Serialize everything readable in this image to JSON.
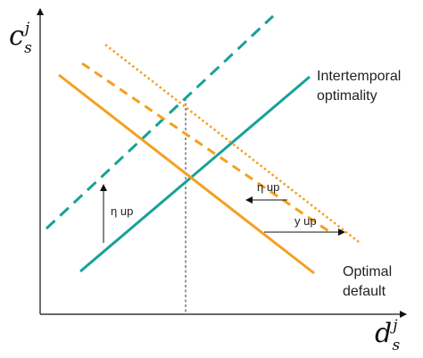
{
  "axes": {
    "y_label": {
      "base": "c",
      "sup": "j",
      "sub": "s"
    },
    "x_label": {
      "base": "d",
      "sup": "j",
      "sub": "s"
    }
  },
  "curves": {
    "intertemporal_label_line1": "Intertemporal",
    "intertemporal_label_line2": "optimality",
    "optimal_default_label_line1": "Optimal",
    "optimal_default_label_line2": "default"
  },
  "annotations": {
    "eta_up_left": "η up",
    "eta_up_right": "η up",
    "y_up": "y up"
  },
  "colors": {
    "teal": "#17a199",
    "orange": "#f4a020",
    "axis": "#111111",
    "text": "#222222"
  }
}
